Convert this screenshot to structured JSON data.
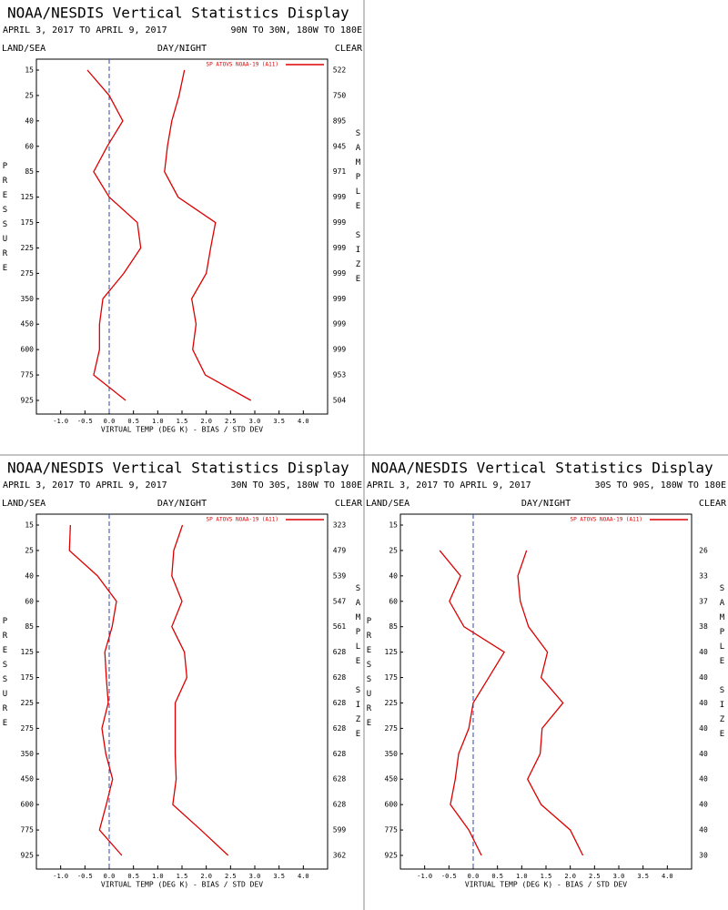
{
  "chart_data": [
    {
      "type": "line",
      "title": "NOAA/NESDIS Vertical Statistics Display",
      "subtitle": "APRIL 3, 2017 TO APRIL 9, 2017",
      "region": "90N TO 30N, 180W TO 180E",
      "land_sea": "LAND/SEA",
      "day_night": "DAY/NIGHT",
      "clear": "CLEAR",
      "ylabel": "PRESSURE",
      "y2label": "SAMPLE SIZE",
      "xlabel": "VIRTUAL TEMP (DEG K) - BIAS / STD DEV",
      "legend": "SP ATOVS NOAA-19 (A11)",
      "categories": [
        15,
        25,
        40,
        60,
        85,
        125,
        175,
        225,
        275,
        350,
        450,
        600,
        775,
        925
      ],
      "sample_size": [
        522,
        750,
        895,
        945,
        971,
        999,
        999,
        999,
        999,
        999,
        999,
        999,
        953,
        504
      ],
      "series": [
        {
          "color": "#dd0000",
          "values": [
            -0.45,
            0.0,
            0.28,
            -0.04,
            -0.32,
            0.0,
            0.58,
            0.65,
            0.3,
            -0.13,
            -0.2,
            -0.2,
            -0.32,
            0.34
          ]
        },
        {
          "color": "#dd0000",
          "values": [
            1.55,
            1.44,
            1.29,
            1.2,
            1.14,
            1.42,
            2.19,
            2.09,
            2.0,
            1.7,
            1.79,
            1.72,
            1.98,
            2.92
          ]
        }
      ],
      "xlim": [
        -1.5,
        4.5
      ],
      "xticks": [
        {
          "value": -1,
          "label": "-1.0"
        },
        {
          "value": -0.5,
          "label": "-0.5"
        },
        {
          "value": 0,
          "label": "0.0"
        },
        {
          "value": 0.5,
          "label": "0.5"
        },
        {
          "value": 1,
          "label": "1.0"
        },
        {
          "value": 1.5,
          "label": "1.5"
        },
        {
          "value": 2,
          "label": "2.0"
        },
        {
          "value": 2.5,
          "label": "2.5"
        },
        {
          "value": 3,
          "label": "3.0"
        },
        {
          "value": 3.5,
          "label": "3.5"
        },
        {
          "value": 4,
          "label": "4.0"
        }
      ]
    },
    {
      "type": "line",
      "title": "NOAA/NESDIS Vertical Statistics Display",
      "subtitle": "APRIL 3, 2017 TO APRIL 9, 2017",
      "region": "30N TO 30S, 180W TO 180E",
      "land_sea": "LAND/SEA",
      "day_night": "DAY/NIGHT",
      "clear": "CLEAR",
      "ylabel": "PRESSURE",
      "y2label": "SAMPLE SIZE",
      "xlabel": "VIRTUAL TEMP (DEG K) - BIAS / STD DEV",
      "legend": "SP ATOVS NOAA-19 (A11)",
      "categories": [
        15,
        25,
        40,
        60,
        85,
        125,
        175,
        225,
        275,
        350,
        450,
        600,
        775,
        925
      ],
      "sample_size": [
        323,
        479,
        539,
        547,
        561,
        628,
        628,
        628,
        628,
        628,
        628,
        628,
        599,
        362
      ],
      "series": [
        {
          "color": "#dd0000",
          "values": [
            -0.8,
            -0.82,
            -0.24,
            0.15,
            0.06,
            -0.09,
            -0.06,
            -0.02,
            -0.15,
            -0.07,
            0.07,
            -0.06,
            -0.2,
            0.26
          ]
        },
        {
          "color": "#dd0000",
          "values": [
            1.51,
            1.33,
            1.29,
            1.5,
            1.29,
            1.55,
            1.6,
            1.36,
            1.36,
            1.36,
            1.38,
            1.31,
            1.89,
            2.45
          ]
        }
      ],
      "xlim": [
        -1.5,
        4.5
      ],
      "xticks": [
        {
          "value": -1,
          "label": "-1.0"
        },
        {
          "value": -0.5,
          "label": "-0.5"
        },
        {
          "value": 0,
          "label": "0.0"
        },
        {
          "value": 0.5,
          "label": "0.5"
        },
        {
          "value": 1,
          "label": "1.0"
        },
        {
          "value": 1.5,
          "label": "1.5"
        },
        {
          "value": 2,
          "label": "2.0"
        },
        {
          "value": 2.5,
          "label": "2.5"
        },
        {
          "value": 3,
          "label": "3.0"
        },
        {
          "value": 3.5,
          "label": "3.5"
        },
        {
          "value": 4,
          "label": "4.0"
        }
      ]
    },
    {
      "type": "line",
      "title": "NOAA/NESDIS Vertical Statistics Display",
      "subtitle": "APRIL 3, 2017 TO APRIL 9, 2017",
      "region": "30S TO 90S, 180W TO 180E",
      "land_sea": "LAND/SEA",
      "day_night": "DAY/NIGHT",
      "clear": "CLEAR",
      "ylabel": "PRESSURE",
      "y2label": "SAMPLE SIZE",
      "xlabel": "VIRTUAL TEMP (DEG K) - BIAS / STD DEV",
      "legend": "SP ATOVS NOAA-19 (A11)",
      "categories": [
        15,
        25,
        40,
        60,
        85,
        125,
        175,
        225,
        275,
        350,
        450,
        600,
        775,
        925
      ],
      "sample_size": [
        null,
        26,
        33,
        37,
        38,
        40,
        40,
        40,
        40,
        40,
        40,
        40,
        40,
        30
      ],
      "series": [
        {
          "color": "#dd0000",
          "values": [
            null,
            -0.69,
            -0.26,
            -0.49,
            -0.19,
            0.64,
            0.32,
            0.0,
            -0.09,
            -0.3,
            -0.37,
            -0.47,
            -0.09,
            0.17
          ]
        },
        {
          "color": "#dd0000",
          "values": [
            null,
            1.1,
            0.92,
            0.97,
            1.14,
            1.53,
            1.4,
            1.85,
            1.42,
            1.38,
            1.12,
            1.4,
            2.0,
            2.26
          ]
        }
      ],
      "xlim": [
        -1.5,
        4.5
      ],
      "xticks": [
        {
          "value": -1,
          "label": "-1.0"
        },
        {
          "value": -0.5,
          "label": "-0.5"
        },
        {
          "value": 0,
          "label": "0.0"
        },
        {
          "value": 0.5,
          "label": "0.5"
        },
        {
          "value": 1,
          "label": "1.0"
        },
        {
          "value": 1.5,
          "label": "1.5"
        },
        {
          "value": 2,
          "label": "2.0"
        },
        {
          "value": 2.5,
          "label": "2.5"
        },
        {
          "value": 3,
          "label": "3.0"
        },
        {
          "value": 3.5,
          "label": "3.5"
        },
        {
          "value": 4,
          "label": "4.0"
        }
      ]
    }
  ]
}
